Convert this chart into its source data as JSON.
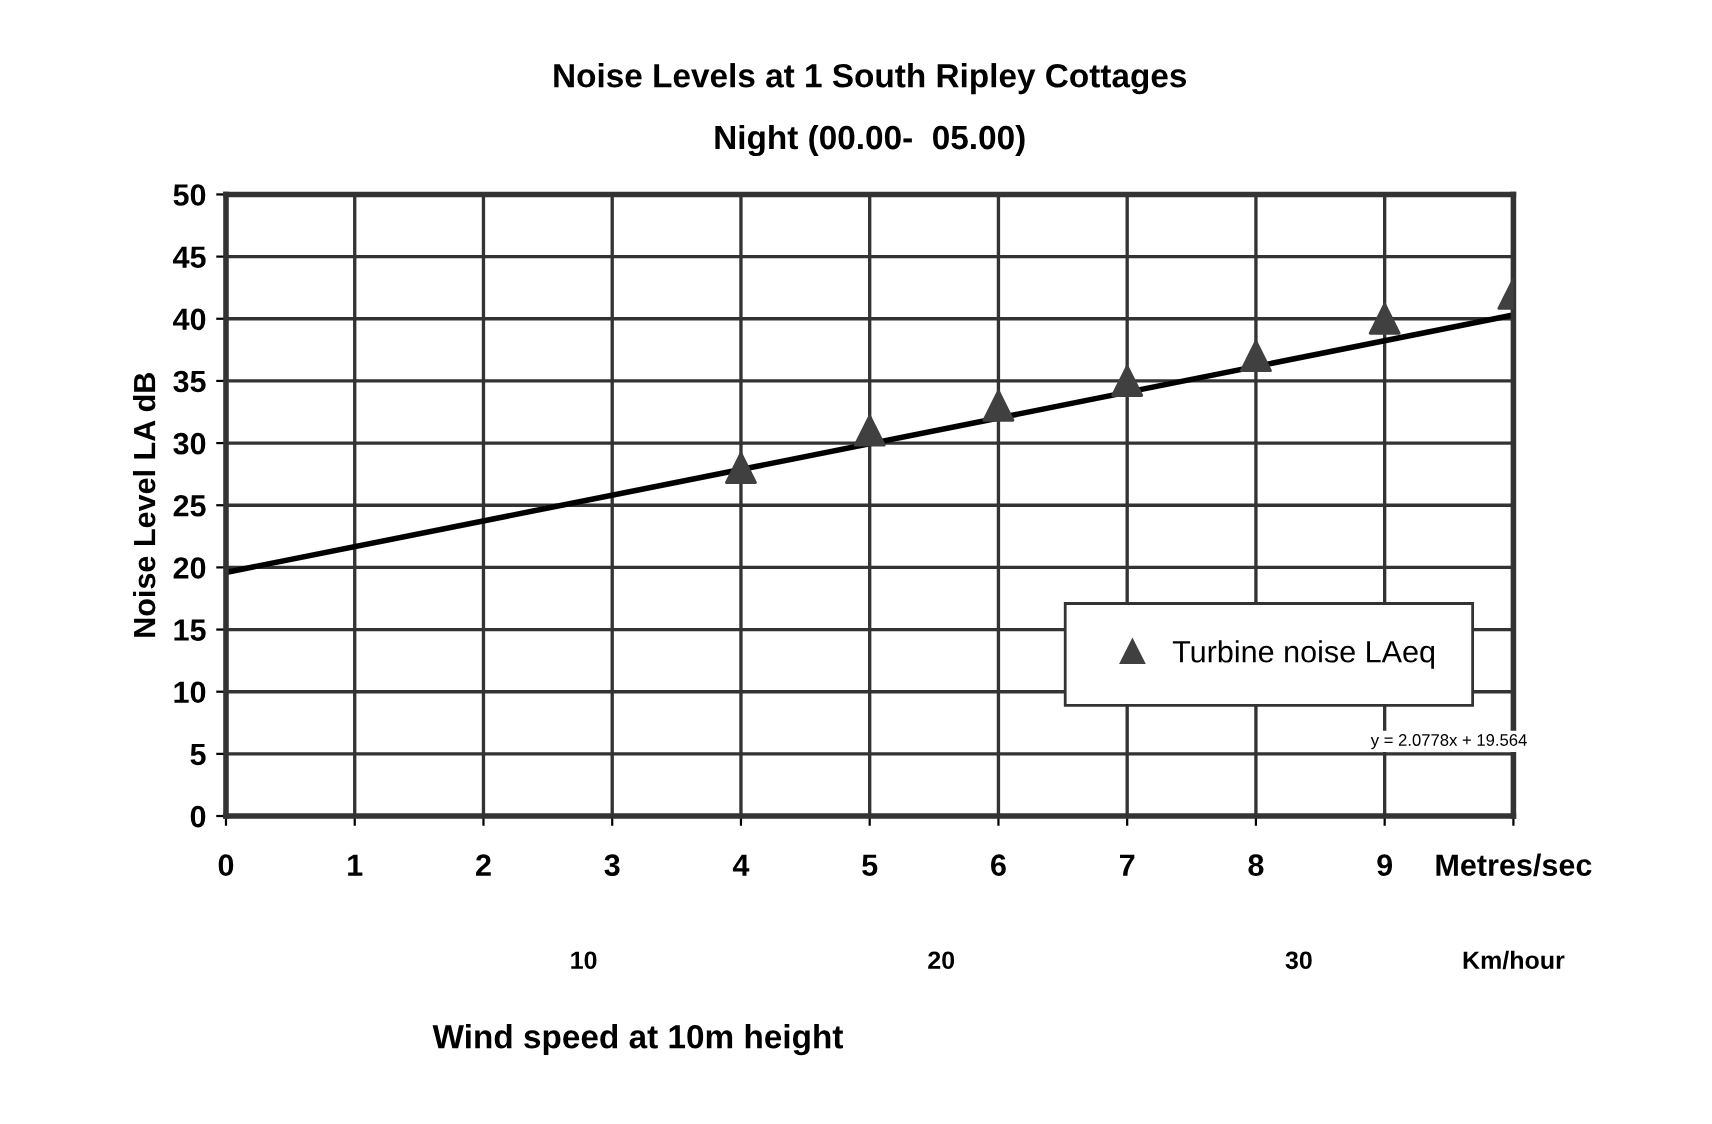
{
  "chart_data": {
    "type": "scatter",
    "title": "Noise Levels at 1 South Ripley Cottages",
    "subtitle": "Night (00.00-  05.00)",
    "xlabel": "Wind speed at 10m height",
    "ylabel": "Noise Level LA dB",
    "x": [
      4,
      5,
      6,
      7,
      8,
      9,
      10
    ],
    "series": [
      {
        "name": "Turbine noise LAeq",
        "color": "#404040",
        "values": [
          28,
          31,
          33,
          35,
          37,
          40,
          42
        ],
        "marker": "triangle"
      },
      {
        "type": "line",
        "color": "#000000",
        "x": [
          0,
          10
        ],
        "values": [
          19.6,
          40.3
        ],
        "marker": "none",
        "line_style": "solid"
      }
    ],
    "xlim": [
      0,
      10
    ],
    "xticks": [
      0,
      1,
      2,
      3,
      4,
      5,
      6,
      7,
      8,
      9,
      {
        "value": 10,
        "label": "Metres/sec"
      }
    ],
    "x2lim": [
      0,
      36
    ],
    "x2ticks": [
      10,
      20,
      30,
      {
        "value": 36,
        "label": "Km/hour"
      }
    ],
    "ylim": [
      0,
      50
    ],
    "yticks": [
      0,
      5,
      10,
      15,
      20,
      25,
      30,
      35,
      40,
      45,
      50
    ],
    "grid": true,
    "legend": "right",
    "annotations": [
      "y = 2.0778x + 19.564"
    ]
  }
}
